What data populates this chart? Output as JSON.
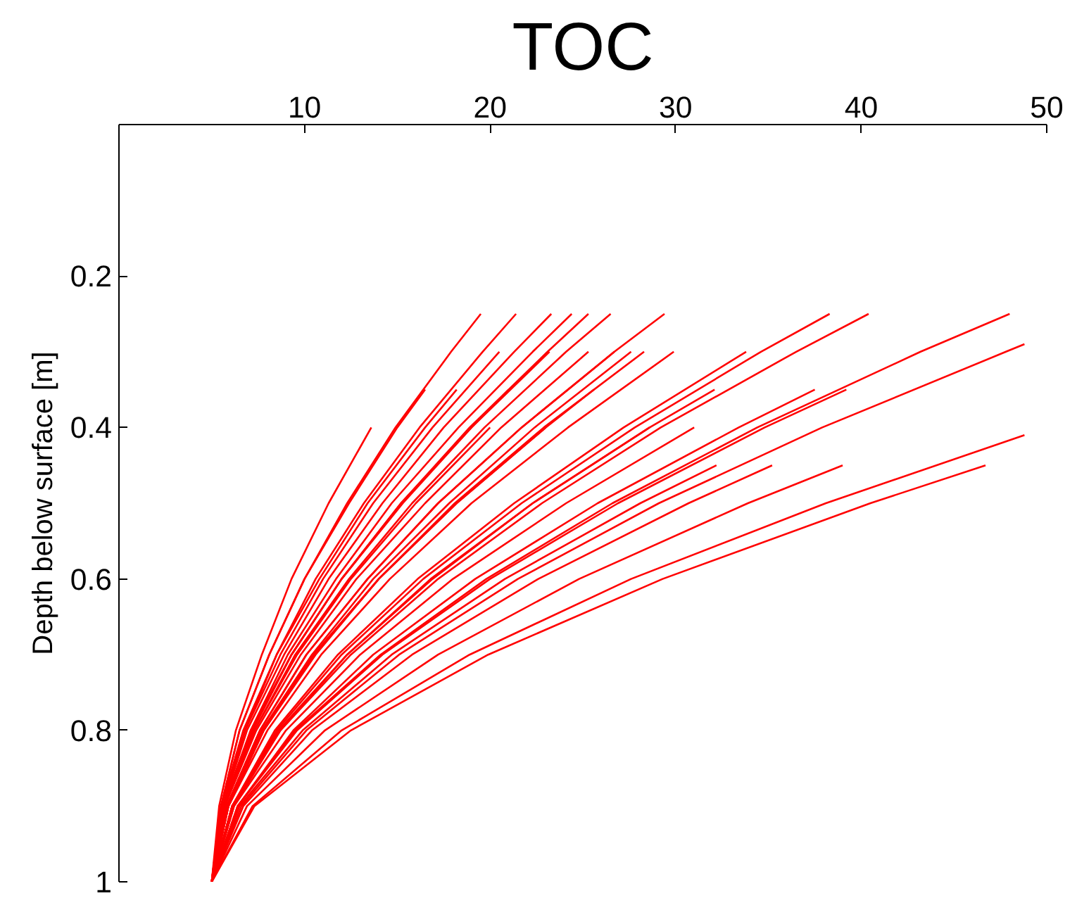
{
  "chart_data": {
    "type": "line",
    "title": "TOC",
    "ylabel": "Depth below surface [m]",
    "xlim": [
      0,
      50
    ],
    "xticks": [
      10,
      20,
      30,
      40,
      50
    ],
    "ylim": [
      1,
      0
    ],
    "yticks": [
      0.2,
      0.4,
      0.6,
      0.8,
      1
    ],
    "grid": false,
    "line_style": "solid",
    "series": [
      {
        "color": "#ff0000",
        "x": [
          5,
          5.5,
          6.5,
          8.1,
          10.0,
          12.3,
          14.9,
          17.9,
          19.5
        ],
        "values": [
          1,
          0.9,
          0.8,
          0.7,
          0.6,
          0.5,
          0.4,
          0.3,
          0.25
        ]
      },
      {
        "color": "#ff0000",
        "x": [
          5,
          5.5,
          6.7,
          8.5,
          10.6,
          13.2,
          16.2,
          19.6,
          21.4
        ],
        "values": [
          1,
          0.9,
          0.8,
          0.7,
          0.6,
          0.5,
          0.4,
          0.3,
          0.25
        ]
      },
      {
        "color": "#ff0000",
        "x": [
          5,
          5.6,
          6.9,
          8.9,
          11.3,
          14.2,
          17.5,
          21.3,
          23.3
        ],
        "values": [
          1,
          0.9,
          0.8,
          0.7,
          0.6,
          0.5,
          0.4,
          0.3,
          0.25
        ]
      },
      {
        "color": "#ff0000",
        "x": [
          5,
          5.6,
          7.1,
          9.1,
          11.7,
          14.7,
          18.3,
          22.3,
          24.4
        ],
        "values": [
          1,
          0.9,
          0.8,
          0.7,
          0.6,
          0.5,
          0.4,
          0.3,
          0.25
        ]
      },
      {
        "color": "#ff0000",
        "x": [
          5,
          5.7,
          7.1,
          9.3,
          12.0,
          15.2,
          18.9,
          23.1,
          25.3
        ],
        "values": [
          1,
          0.9,
          0.8,
          0.7,
          0.6,
          0.5,
          0.4,
          0.3,
          0.25
        ]
      },
      {
        "color": "#ff0000",
        "x": [
          5,
          5.7,
          7.3,
          9.5,
          12.4,
          15.8,
          19.7,
          24.1,
          26.5
        ],
        "values": [
          1,
          0.9,
          0.8,
          0.7,
          0.6,
          0.5,
          0.4,
          0.3,
          0.25
        ]
      },
      {
        "color": "#ff0000",
        "x": [
          5,
          5.8,
          7.6,
          10.1,
          13.4,
          17.2,
          21.7,
          26.7,
          29.4
        ],
        "values": [
          1,
          0.9,
          0.8,
          0.7,
          0.6,
          0.5,
          0.4,
          0.3,
          0.25
        ]
      },
      {
        "color": "#ff0000",
        "x": [
          5,
          6.1,
          8.5,
          12.0,
          16.4,
          21.7,
          27.8,
          34.6,
          38.3
        ],
        "values": [
          1,
          0.9,
          0.8,
          0.7,
          0.6,
          0.5,
          0.4,
          0.3,
          0.25
        ]
      },
      {
        "color": "#ff0000",
        "x": [
          5,
          6.2,
          8.7,
          12.5,
          17.2,
          22.8,
          29.2,
          36.5,
          40.4
        ],
        "values": [
          1,
          0.9,
          0.8,
          0.7,
          0.6,
          0.5,
          0.4,
          0.3,
          0.25
        ]
      },
      {
        "color": "#ff0000",
        "x": [
          5,
          6.4,
          9.5,
          14.1,
          19.8,
          26.6,
          34.4,
          43.2,
          48.0
        ],
        "values": [
          1,
          0.9,
          0.8,
          0.7,
          0.6,
          0.5,
          0.4,
          0.3,
          0.25
        ]
      },
      {
        "color": "#ff0000",
        "x": [
          5,
          5.6,
          6.8,
          8.7,
          11.0,
          13.7,
          16.9,
          20.5
        ],
        "values": [
          1,
          0.9,
          0.8,
          0.7,
          0.6,
          0.5,
          0.4,
          0.3
        ]
      },
      {
        "color": "#ff0000",
        "x": [
          5,
          5.7,
          7.2,
          9.3,
          12.0,
          15.3,
          19.0,
          23.2
        ],
        "values": [
          1,
          0.9,
          0.8,
          0.7,
          0.6,
          0.5,
          0.4,
          0.3
        ]
      },
      {
        "color": "#ff0000",
        "x": [
          5,
          5.7,
          7.4,
          9.8,
          12.8,
          16.5,
          20.6,
          25.3
        ],
        "values": [
          1,
          0.9,
          0.8,
          0.7,
          0.6,
          0.5,
          0.4,
          0.3
        ]
      },
      {
        "color": "#ff0000",
        "x": [
          5,
          5.8,
          7.6,
          10.1,
          13.4,
          17.2,
          21.7,
          26.7
        ],
        "values": [
          1,
          0.9,
          0.8,
          0.7,
          0.6,
          0.5,
          0.4,
          0.3
        ]
      },
      {
        "color": "#ff0000",
        "x": [
          5,
          5.8,
          7.7,
          10.4,
          13.7,
          17.8,
          22.4,
          27.6
        ],
        "values": [
          1,
          0.9,
          0.8,
          0.7,
          0.6,
          0.5,
          0.4,
          0.3
        ]
      },
      {
        "color": "#ff0000",
        "x": [
          5,
          5.9,
          7.8,
          10.5,
          14.0,
          18.1,
          22.9,
          28.3
        ],
        "values": [
          1,
          0.9,
          0.8,
          0.7,
          0.6,
          0.5,
          0.4,
          0.3
        ]
      },
      {
        "color": "#ff0000",
        "x": [
          5,
          5.9,
          8.0,
          10.9,
          14.6,
          19.0,
          24.2,
          29.9
        ],
        "values": [
          1,
          0.9,
          0.8,
          0.7,
          0.6,
          0.5,
          0.4,
          0.3
        ]
      },
      {
        "color": "#ff0000",
        "x": [
          5,
          6.1,
          8.4,
          11.8,
          16.1,
          21.3,
          27.2,
          33.8
        ],
        "values": [
          1,
          0.9,
          0.8,
          0.7,
          0.6,
          0.5,
          0.4,
          0.3
        ]
      },
      {
        "color": "#ff0000",
        "x": [
          5,
          6.6,
          10.1,
          15.1,
          21.5,
          29.1,
          37.9,
          47.8,
          48.8
        ],
        "values": [
          1,
          0.9,
          0.8,
          0.7,
          0.6,
          0.5,
          0.4,
          0.3,
          0.29
        ]
      },
      {
        "color": "#ff0000",
        "x": [
          5,
          5.5,
          6.5,
          8.1,
          10.0,
          12.4,
          15.0,
          16.5
        ],
        "values": [
          1,
          0.9,
          0.8,
          0.7,
          0.6,
          0.5,
          0.4,
          0.35
        ]
      },
      {
        "color": "#ff0000",
        "x": [
          5,
          5.5,
          6.8,
          8.5,
          10.8,
          13.4,
          16.5,
          18.2
        ],
        "values": [
          1,
          0.9,
          0.8,
          0.7,
          0.6,
          0.5,
          0.4,
          0.35
        ]
      },
      {
        "color": "#ff0000",
        "x": [
          5,
          5.7,
          7.2,
          9.3,
          12.0,
          15.2,
          19.0,
          21.0
        ],
        "values": [
          1,
          0.9,
          0.8,
          0.7,
          0.6,
          0.5,
          0.4,
          0.35
        ]
      },
      {
        "color": "#ff0000",
        "x": [
          5,
          5.9,
          7.8,
          10.5,
          14.0,
          18.2,
          23.0,
          25.6
        ],
        "values": [
          1,
          0.9,
          0.8,
          0.7,
          0.6,
          0.5,
          0.4,
          0.35
        ]
      },
      {
        "color": "#ff0000",
        "x": [
          5,
          6.1,
          8.7,
          12.3,
          16.9,
          22.3,
          28.6,
          32.1
        ],
        "values": [
          1,
          0.9,
          0.8,
          0.7,
          0.6,
          0.5,
          0.4,
          0.35
        ]
      },
      {
        "color": "#ff0000",
        "x": [
          5,
          6.4,
          9.4,
          13.7,
          19.2,
          25.8,
          33.4,
          37.5
        ],
        "values": [
          1,
          0.9,
          0.8,
          0.7,
          0.6,
          0.5,
          0.4,
          0.35
        ]
      },
      {
        "color": "#ff0000",
        "x": [
          5,
          6.4,
          9.6,
          14.2,
          20.0,
          26.9,
          34.8,
          39.2
        ],
        "values": [
          1,
          0.9,
          0.8,
          0.7,
          0.6,
          0.5,
          0.4,
          0.35
        ]
      },
      {
        "color": "#ff0000",
        "x": [
          5,
          5.4,
          6.3,
          7.7,
          9.3,
          11.3,
          13.6
        ],
        "values": [
          1,
          0.9,
          0.8,
          0.7,
          0.6,
          0.5,
          0.4
        ]
      },
      {
        "color": "#ff0000",
        "x": [
          5,
          5.7,
          7.3,
          9.6,
          12.5,
          16.0,
          20.0
        ],
        "values": [
          1,
          0.9,
          0.8,
          0.7,
          0.6,
          0.5,
          0.4
        ]
      },
      {
        "color": "#ff0000",
        "x": [
          5,
          5.9,
          7.8,
          10.6,
          14.0,
          18.2,
          23.0
        ],
        "values": [
          1,
          0.9,
          0.8,
          0.7,
          0.6,
          0.5,
          0.4
        ]
      },
      {
        "color": "#ff0000",
        "x": [
          5,
          6.1,
          8.6,
          12.3,
          16.8,
          22.3,
          28.6
        ],
        "values": [
          1,
          0.9,
          0.8,
          0.7,
          0.6,
          0.5,
          0.4
        ]
      },
      {
        "color": "#ff0000",
        "x": [
          5,
          6.2,
          9.0,
          13.0,
          18.0,
          24.1,
          31.0
        ],
        "values": [
          1,
          0.9,
          0.8,
          0.7,
          0.6,
          0.5,
          0.4
        ]
      },
      {
        "color": "#ff0000",
        "x": [
          5,
          7.2,
          12.0,
          18.9,
          27.6,
          38.1,
          48.8
        ],
        "values": [
          1,
          0.9,
          0.8,
          0.7,
          0.6,
          0.5,
          0.41
        ]
      },
      {
        "color": "#ff0000",
        "x": [
          5,
          6.5,
          9.9,
          14.7,
          20.8,
          28.1,
          32.2
        ],
        "values": [
          1,
          0.9,
          0.8,
          0.7,
          0.6,
          0.5,
          0.45
        ]
      },
      {
        "color": "#ff0000",
        "x": [
          5,
          6.7,
          10.4,
          15.8,
          22.6,
          30.7,
          35.2
        ],
        "values": [
          1,
          0.9,
          0.8,
          0.7,
          0.6,
          0.5,
          0.45
        ]
      },
      {
        "color": "#ff0000",
        "x": [
          5,
          6.9,
          11.1,
          17.2,
          24.8,
          33.9,
          39.0
        ],
        "values": [
          1,
          0.9,
          0.8,
          0.7,
          0.6,
          0.5,
          0.45
        ]
      },
      {
        "color": "#ff0000",
        "x": [
          5,
          7.3,
          12.5,
          19.9,
          29.3,
          40.5,
          46.7
        ],
        "values": [
          1,
          0.9,
          0.8,
          0.7,
          0.6,
          0.5,
          0.45
        ]
      }
    ]
  }
}
